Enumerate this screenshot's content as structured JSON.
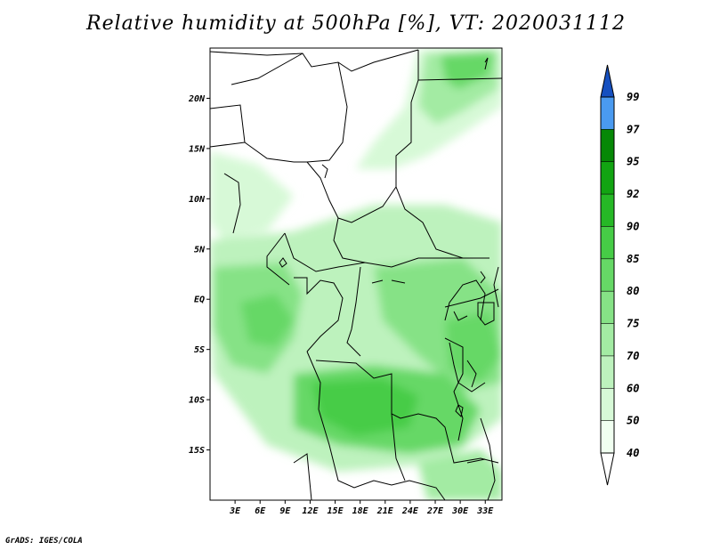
{
  "title": "Relative humidity at 500hPa [%], VT: 2020031112",
  "footer": "GrADS: IGES/COLA",
  "map": {
    "lon_range": [
      0,
      35
    ],
    "lat_range": [
      -20,
      25
    ],
    "lat_ticks": [
      {
        "value": 20,
        "label": "20N"
      },
      {
        "value": 15,
        "label": "15N"
      },
      {
        "value": 10,
        "label": "10N"
      },
      {
        "value": 5,
        "label": "5N"
      },
      {
        "value": 0,
        "label": "EQ"
      },
      {
        "value": -5,
        "label": "5S"
      },
      {
        "value": -10,
        "label": "10S"
      },
      {
        "value": -15,
        "label": "15S"
      }
    ],
    "lon_ticks": [
      {
        "value": 3,
        "label": "3E"
      },
      {
        "value": 6,
        "label": "6E"
      },
      {
        "value": 9,
        "label": "9E"
      },
      {
        "value": 12,
        "label": "12E"
      },
      {
        "value": 15,
        "label": "15E"
      },
      {
        "value": 18,
        "label": "18E"
      },
      {
        "value": 21,
        "label": "21E"
      },
      {
        "value": 24,
        "label": "24E"
      },
      {
        "value": 27,
        "label": "27E"
      },
      {
        "value": 30,
        "label": "30E"
      },
      {
        "value": 33,
        "label": "33E"
      }
    ]
  },
  "colorbar": {
    "levels": [
      {
        "label": "40",
        "color": "#f0fff0"
      },
      {
        "label": "50",
        "color": "#d7f9d7"
      },
      {
        "label": "60",
        "color": "#bdf2bd"
      },
      {
        "label": "70",
        "color": "#a3eba3"
      },
      {
        "label": "75",
        "color": "#86e286"
      },
      {
        "label": "80",
        "color": "#66d866"
      },
      {
        "label": "85",
        "color": "#46cc46"
      },
      {
        "label": "90",
        "color": "#26b826"
      },
      {
        "label": "92",
        "color": "#12a412"
      },
      {
        "label": "95",
        "color": "#068806"
      },
      {
        "label": "97",
        "color": "#4a9af0"
      },
      {
        "label": "99",
        "color": "#1e6fe0"
      }
    ],
    "top_arrow_color": "#1650c0",
    "bottom_arrow_color": "#ffffff"
  }
}
